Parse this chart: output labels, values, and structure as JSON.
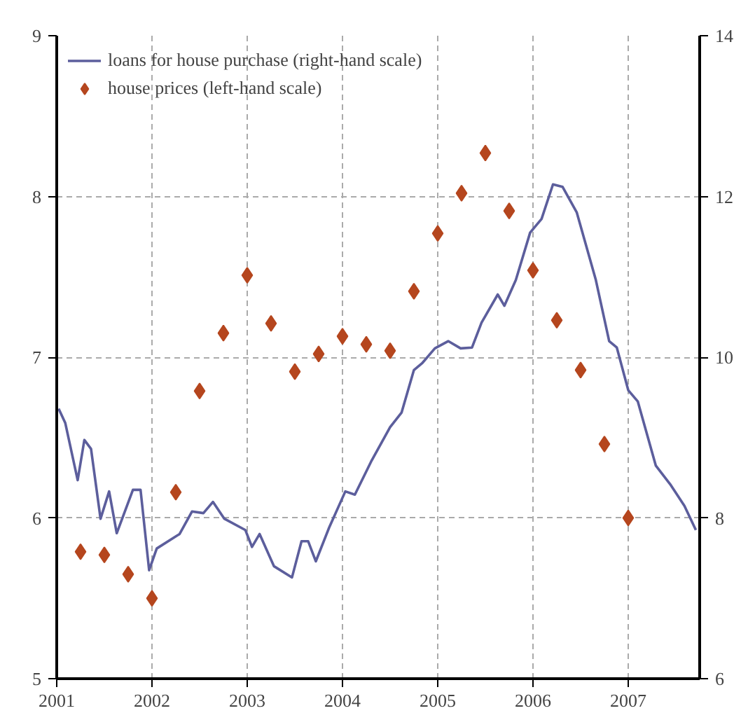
{
  "chart_data": {
    "type": "scatter",
    "x": [
      2001.25,
      2001.5,
      2001.75,
      2002,
      2002.25,
      2002.5,
      2002.75,
      2003,
      2003.25,
      2003.5,
      2003.75,
      2004,
      2004.25,
      2004.5,
      2004.75,
      2005,
      2005.25,
      2005.5,
      2005.75,
      2006,
      2006.25,
      2006.5,
      2006.75,
      2007
    ],
    "series": [
      {
        "name": "loans for house purchase (right-hand scale)",
        "type": "line",
        "axis": "y2",
        "color": "#5c5e9c",
        "x": [
          2001.02,
          2001.09,
          2001.22,
          2001.29,
          2001.36,
          2001.46,
          2001.55,
          2001.63,
          2001.8,
          2001.88,
          2001.97,
          2002.05,
          2002.29,
          2002.42,
          2002.54,
          2002.64,
          2002.76,
          2002.98,
          2003.05,
          2003.13,
          2003.28,
          2003.47,
          2003.57,
          2003.64,
          2003.72,
          2003.86,
          2004.03,
          2004.13,
          2004.3,
          2004.5,
          2004.62,
          2004.75,
          2004.84,
          2004.97,
          2005.11,
          2005.24,
          2005.36,
          2005.46,
          2005.63,
          2005.7,
          2005.82,
          2005.97,
          2006.09,
          2006.21,
          2006.31,
          2006.46,
          2006.66,
          2006.8,
          2006.88,
          2007.0,
          2007.1,
          2007.29,
          2007.44,
          2007.59,
          2007.71
        ],
        "values": [
          9.36,
          9.18,
          8.47,
          8.97,
          8.86,
          7.99,
          8.33,
          7.81,
          8.35,
          8.35,
          7.35,
          7.62,
          7.8,
          8.08,
          8.06,
          8.2,
          7.99,
          7.85,
          7.64,
          7.8,
          7.4,
          7.26,
          7.71,
          7.71,
          7.46,
          7.88,
          8.33,
          8.29,
          8.7,
          9.13,
          9.31,
          9.84,
          9.93,
          10.11,
          10.2,
          10.11,
          10.12,
          10.43,
          10.78,
          10.64,
          10.96,
          11.55,
          11.72,
          12.15,
          12.12,
          11.8,
          10.96,
          10.2,
          10.12,
          9.59,
          9.45,
          8.65,
          8.42,
          8.15,
          7.85
        ]
      },
      {
        "name": "house prices (left-hand scale)",
        "marker": "diamond",
        "color": "#b5461e",
        "values": [
          5.79,
          5.77,
          5.65,
          5.5,
          6.16,
          6.79,
          7.15,
          7.51,
          7.21,
          6.91,
          7.02,
          7.13,
          7.08,
          7.04,
          7.41,
          7.77,
          8.02,
          8.27,
          7.91,
          7.54,
          7.23,
          6.92,
          6.46,
          6.0
        ]
      }
    ],
    "xlim": [
      2001,
      2007.75
    ],
    "xticks": [
      2001,
      2002,
      2003,
      2004,
      2005,
      2006,
      2007
    ],
    "ylim": [
      5,
      9
    ],
    "yticks": [
      5,
      6,
      7,
      8,
      9
    ],
    "y2lim": [
      6,
      14
    ],
    "y2ticks": [
      6,
      8,
      10,
      12,
      14
    ],
    "grid": true,
    "legend": "top left"
  }
}
